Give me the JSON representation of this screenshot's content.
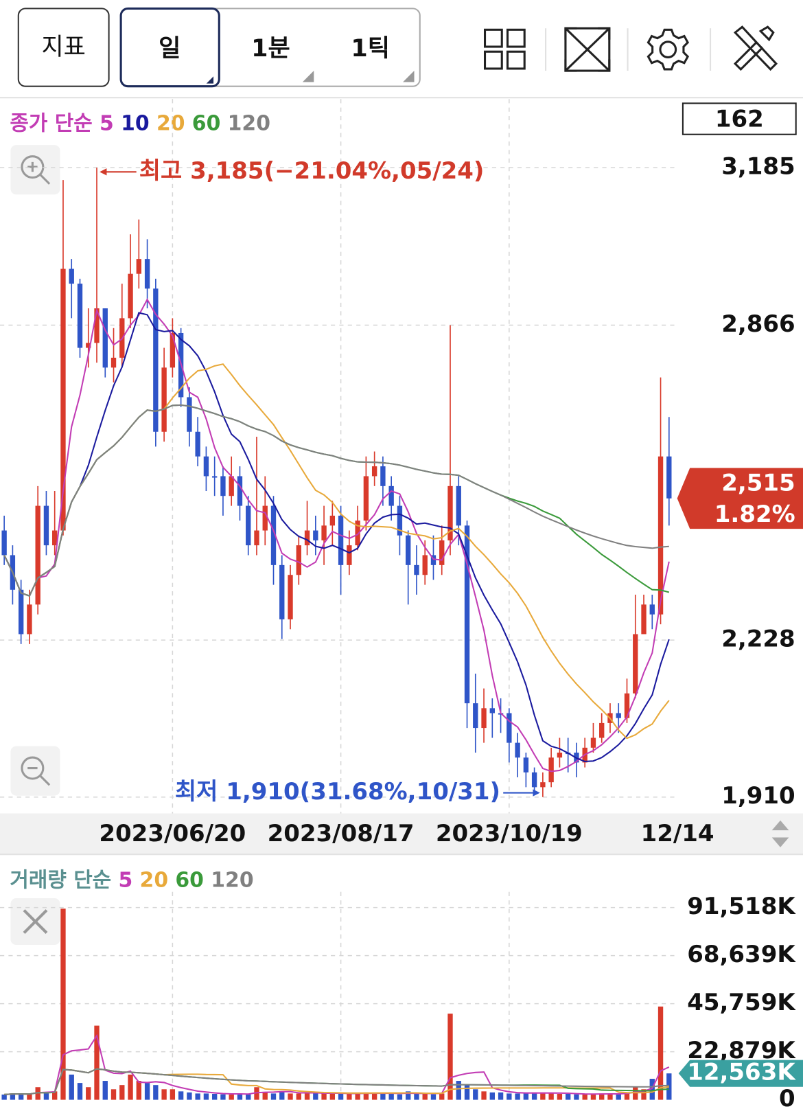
{
  "toolbar": {
    "indicator": "지표",
    "periods": [
      "일",
      "1분",
      "1틱"
    ]
  },
  "chart_data": [
    {
      "type": "candlestick",
      "legend_label": "종가 단순",
      "ma": [
        {
          "period": 5,
          "color": "#c23cb4"
        },
        {
          "period": 10,
          "color": "#1a1a9e"
        },
        {
          "period": 20,
          "color": "#e8a93a"
        },
        {
          "period": 60,
          "color": "#3a9a3a"
        },
        {
          "period": 120,
          "color": "#808080"
        }
      ],
      "count_box": "162",
      "up_color": "#d93a2b",
      "down_color": "#2f55c8",
      "open": [
        2450,
        2400,
        2330,
        2240,
        2300,
        2500,
        2420,
        2450,
        2980,
        2950,
        2820,
        2830,
        2900,
        2780,
        2800,
        2880,
        2970,
        3000,
        2940,
        2650,
        2780,
        2850,
        2720,
        2650,
        2600,
        2560,
        2560,
        2520,
        2560,
        2500,
        2420,
        2450,
        2500,
        2380,
        2270,
        2360,
        2420,
        2450,
        2430,
        2460,
        2480,
        2380,
        2420,
        2470,
        2560,
        2580,
        2540,
        2500,
        2440,
        2380,
        2360,
        2400,
        2380,
        2430,
        2540,
        2460,
        2100,
        2050,
        2090,
        2080,
        2080,
        2020,
        1990,
        1960,
        1930,
        1940,
        1990,
        2000,
        2000,
        1980,
        2010,
        2030,
        2060,
        2080,
        2070,
        2120,
        2240,
        2300,
        2280,
        2600
      ],
      "high": [
        2480,
        2420,
        2350,
        2330,
        2540,
        2530,
        2530,
        3160,
        3000,
        2960,
        2900,
        3185,
        2900,
        2860,
        2950,
        3050,
        3080,
        3040,
        2960,
        2820,
        2880,
        2860,
        2740,
        2680,
        2620,
        2600,
        2580,
        2600,
        2580,
        2520,
        2640,
        2560,
        2520,
        2400,
        2380,
        2440,
        2510,
        2480,
        2500,
        2510,
        2500,
        2450,
        2500,
        2600,
        2610,
        2600,
        2560,
        2520,
        2450,
        2420,
        2430,
        2440,
        2460,
        2866,
        2560,
        2470,
        2160,
        2130,
        2110,
        2110,
        2090,
        2040,
        2000,
        1970,
        1960,
        2010,
        2030,
        2030,
        2020,
        2030,
        2060,
        2080,
        2100,
        2100,
        2150,
        2320,
        2320,
        2320,
        2760,
        2680
      ],
      "low": [
        2380,
        2300,
        2220,
        2220,
        2280,
        2400,
        2400,
        2440,
        2880,
        2800,
        2780,
        2790,
        2760,
        2750,
        2780,
        2860,
        2940,
        2900,
        2620,
        2630,
        2760,
        2700,
        2620,
        2580,
        2530,
        2520,
        2480,
        2500,
        2470,
        2400,
        2400,
        2420,
        2340,
        2230,
        2250,
        2340,
        2400,
        2400,
        2380,
        2420,
        2320,
        2360,
        2410,
        2450,
        2540,
        2500,
        2470,
        2400,
        2300,
        2320,
        2340,
        2350,
        2360,
        2400,
        2420,
        2050,
        2000,
        2020,
        2030,
        2040,
        1980,
        1950,
        1930,
        1915,
        1910,
        1930,
        1970,
        1960,
        1950,
        1970,
        2000,
        2020,
        2040,
        2040,
        2060,
        2110,
        2240,
        2250,
        2260,
        2460
      ],
      "close": [
        2400,
        2330,
        2240,
        2300,
        2500,
        2420,
        2450,
        2980,
        2950,
        2820,
        2830,
        2900,
        2780,
        2800,
        2880,
        2970,
        3000,
        2940,
        2650,
        2780,
        2850,
        2720,
        2650,
        2600,
        2560,
        2560,
        2520,
        2560,
        2500,
        2420,
        2450,
        2500,
        2380,
        2270,
        2360,
        2420,
        2450,
        2430,
        2460,
        2480,
        2380,
        2420,
        2470,
        2560,
        2580,
        2540,
        2500,
        2440,
        2380,
        2360,
        2400,
        2380,
        2430,
        2540,
        2460,
        2100,
        2050,
        2090,
        2080,
        2080,
        2020,
        1990,
        1960,
        1930,
        1940,
        1990,
        2000,
        2000,
        1980,
        2010,
        2030,
        2060,
        2080,
        2070,
        2120,
        2240,
        2300,
        2280,
        2600,
        2515
      ],
      "xlim": [
        -0.5,
        79.8
      ],
      "xticks": [
        {
          "value": 20,
          "label": "2023/06/20"
        },
        {
          "value": 40,
          "label": "2023/08/17"
        },
        {
          "value": 60,
          "label": "2023/10/19"
        },
        {
          "value": 80,
          "label": "12/14"
        }
      ],
      "ylim": [
        1877,
        3324
      ],
      "yticks": [
        {
          "value": 3185,
          "label": "3,185"
        },
        {
          "value": 2866,
          "label": "2,866"
        },
        {
          "value": 2228,
          "label": "2,228"
        },
        {
          "value": 1910,
          "label": "1,910"
        }
      ],
      "grid": true,
      "high_annotation": "최고 3,185(−21.04%,05/24)",
      "low_annotation": "최저 1,910(31.68%,10/31)",
      "last_price": {
        "value": 2515,
        "label": "2,515"
      },
      "change": {
        "value": 1.82,
        "label": "1.82%"
      }
    },
    {
      "type": "bar",
      "legend_label": "거래량 단순",
      "ma": [
        {
          "period": 5,
          "color": "#c23cb4"
        },
        {
          "period": 20,
          "color": "#e8a93a"
        },
        {
          "period": 60,
          "color": "#3a9a3a"
        },
        {
          "period": 120,
          "color": "#808080"
        }
      ],
      "values": [
        2500,
        3000,
        2800,
        2600,
        6000,
        3500,
        4000,
        91000,
        12000,
        8000,
        6000,
        35300,
        9000,
        5000,
        7000,
        12000,
        9000,
        8000,
        7000,
        5000,
        5000,
        4000,
        3500,
        3000,
        3000,
        2800,
        2600,
        2500,
        3000,
        2800,
        6000,
        3500,
        3000,
        4000,
        3000,
        3000,
        3500,
        3200,
        3000,
        3000,
        3000,
        2800,
        3000,
        3500,
        3200,
        3000,
        2800,
        2600,
        4000,
        3000,
        2800,
        2600,
        3000,
        41000,
        9000,
        7000,
        5000,
        4000,
        3500,
        3500,
        3000,
        3000,
        3200,
        3500,
        3500,
        3000,
        2800,
        2800,
        2600,
        2600,
        2800,
        3000,
        3000,
        2800,
        3500,
        6000,
        5000,
        10000,
        44400,
        12563
      ],
      "xlim": [
        -0.5,
        79.8
      ],
      "ylim": [
        0,
        99000
      ],
      "yticks": [
        {
          "value": 91518,
          "label": "91,518K"
        },
        {
          "value": 68639,
          "label": "68,639K"
        },
        {
          "value": 45759,
          "label": "45,759K"
        },
        {
          "value": 22879,
          "label": "22,879K"
        },
        0
      ],
      "grid": true,
      "last_value": {
        "value": 12563,
        "label": "12,563K"
      }
    }
  ]
}
